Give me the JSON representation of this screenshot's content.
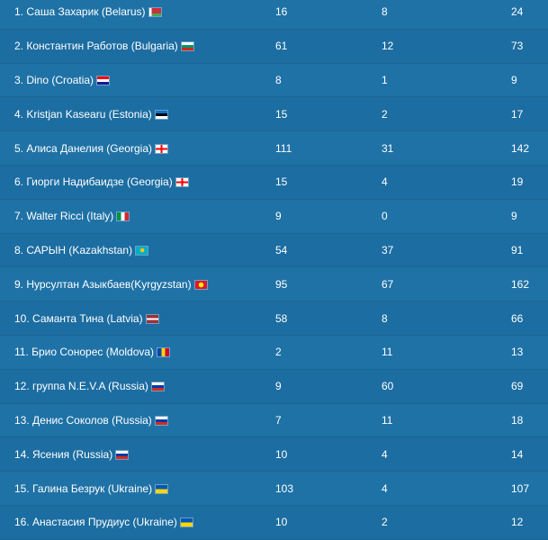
{
  "rows": [
    {
      "name": "1. Саша Захарик (Belarus)",
      "flag": "belarus-flag",
      "a": "16",
      "b": "8",
      "total": "24"
    },
    {
      "name": "2. Константин Работов (Bulgaria)",
      "flag": "bulgaria-flag",
      "a": "61",
      "b": "12",
      "total": "73"
    },
    {
      "name": "3. Dino (Croatia)",
      "flag": "croatia-flag",
      "a": "8",
      "b": "1",
      "total": "9"
    },
    {
      "name": "4. Kristjan Kasearu (Estonia)",
      "flag": "estonia-flag",
      "a": "15",
      "b": "2",
      "total": "17"
    },
    {
      "name": "5. Алиса Данелия (Georgia)",
      "flag": "georgia-flag",
      "a": "111",
      "b": "31",
      "total": "142"
    },
    {
      "name": "6. Гиорги Надибаидзе (Georgia)",
      "flag": "georgia-flag",
      "a": "15",
      "b": "4",
      "total": "19"
    },
    {
      "name": "7. Walter Ricci (Italy)",
      "flag": "italy-flag",
      "a": "9",
      "b": "0",
      "total": "9"
    },
    {
      "name": "8. САРЫН (Kazakhstan)",
      "flag": "kazakhstan-flag",
      "a": "54",
      "b": "37",
      "total": "91"
    },
    {
      "name": "9. Нурсултан Азыкбаев(Kyrgyzstan)",
      "flag": "kyrgyzstan-flag",
      "a": "95",
      "b": "67",
      "total": "162"
    },
    {
      "name": "10. Саманта Тина (Latvia)",
      "flag": "latvia-flag",
      "a": "58",
      "b": "8",
      "total": "66"
    },
    {
      "name": "11. Брио Сонорес (Moldova)",
      "flag": "moldova-flag",
      "a": "2",
      "b": "11",
      "total": "13"
    },
    {
      "name": "12. группа N.E.V.A (Russia)",
      "flag": "russia-flag",
      "a": "9",
      "b": "60",
      "total": "69"
    },
    {
      "name": "13. Денис Соколов (Russia)",
      "flag": "russia-flag",
      "a": "7",
      "b": "11",
      "total": "18"
    },
    {
      "name": "14. Ясения (Russia)",
      "flag": "russia-flag",
      "a": "10",
      "b": "4",
      "total": "14"
    },
    {
      "name": "15. Галина Безрук (Ukraine)",
      "flag": "ukraine-flag",
      "a": "103",
      "b": "4",
      "total": "107"
    },
    {
      "name": "16. Анастасия Прудиус (Ukraine)",
      "flag": "ukraine-flag",
      "a": "10",
      "b": "2",
      "total": "12"
    }
  ]
}
